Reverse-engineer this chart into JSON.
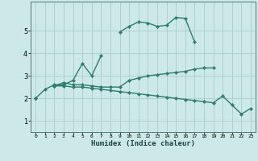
{
  "title": "",
  "xlabel": "Humidex (Indice chaleur)",
  "x_values": [
    0,
    1,
    2,
    3,
    4,
    5,
    6,
    7,
    8,
    9,
    10,
    11,
    12,
    13,
    14,
    15,
    16,
    17,
    18,
    19,
    20,
    21,
    22,
    23
  ],
  "line1_y": [
    2.0,
    2.4,
    2.6,
    2.6,
    2.8,
    3.55,
    3.0,
    3.9,
    null,
    4.95,
    5.2,
    5.4,
    5.35,
    5.2,
    5.25,
    5.6,
    5.55,
    4.5,
    null,
    null,
    null,
    null,
    null,
    null
  ],
  "line2_y": [
    2.0,
    null,
    2.55,
    2.7,
    2.6,
    2.6,
    2.55,
    2.5,
    2.5,
    2.5,
    2.8,
    2.9,
    3.0,
    3.05,
    3.1,
    3.15,
    3.2,
    3.3,
    3.35,
    3.35,
    null,
    null,
    null,
    null
  ],
  "line3_y": [
    2.0,
    null,
    2.55,
    2.55,
    2.5,
    2.5,
    2.45,
    2.4,
    2.35,
    2.3,
    2.25,
    2.2,
    2.15,
    2.1,
    2.05,
    2.0,
    1.95,
    1.9,
    1.85,
    1.8,
    2.1,
    1.7,
    1.3,
    1.55
  ],
  "line_color": "#2d7d6e",
  "bg_color": "#cce8e8",
  "grid_color": "#aacccc",
  "xlim": [
    -0.5,
    23.5
  ],
  "ylim": [
    0.5,
    6.3
  ],
  "yticks": [
    1,
    2,
    3,
    4,
    5
  ],
  "xticks": [
    0,
    1,
    2,
    3,
    4,
    5,
    6,
    7,
    8,
    9,
    10,
    11,
    12,
    13,
    14,
    15,
    16,
    17,
    18,
    19,
    20,
    21,
    22,
    23
  ],
  "marker": "D",
  "markersize": 2.2,
  "linewidth": 1.0
}
